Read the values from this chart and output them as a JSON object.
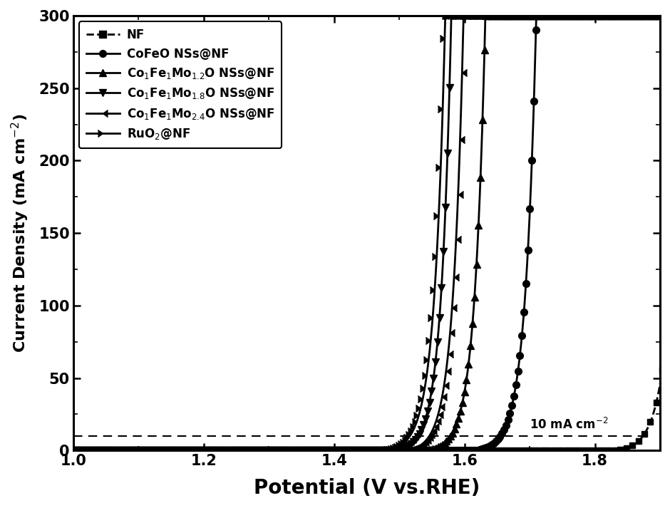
{
  "title": "",
  "xlabel": "Potential (V vs.RHE)",
  "ylabel": "Current Density (mA cm$^{-2}$)",
  "xlim": [
    1.0,
    1.9
  ],
  "ylim": [
    0,
    300
  ],
  "xticks": [
    1.0,
    1.2,
    1.4,
    1.6,
    1.8
  ],
  "yticks": [
    0,
    50,
    100,
    150,
    200,
    250,
    300
  ],
  "ref_line_y": 10,
  "ref_label": "10 mA cm$^{-2}$",
  "background_color": "#ffffff",
  "line_color": "#000000",
  "linewidth": 2.0,
  "markersize": 7,
  "series": [
    {
      "label": "NF",
      "marker": "s",
      "onset": 1.83,
      "k": 55,
      "is_nf": true
    },
    {
      "label": "CoFeO NSs@NF",
      "marker": "o",
      "onset": 1.615,
      "k": 60,
      "is_nf": false
    },
    {
      "label": "Co$_1$Fe$_1$Mo$_{1.2}$O NSs@NF",
      "marker": "^",
      "onset": 1.54,
      "k": 62,
      "is_nf": false
    },
    {
      "label": "Co$_1$Fe$_1$Mo$_{1.8}$O NSs@NF",
      "marker": "v",
      "onset": 1.492,
      "k": 65,
      "is_nf": false
    },
    {
      "label": "Co$_1$Fe$_1$Mo$_{2.4}$O NSs@NF",
      "marker": 4,
      "onset": 1.508,
      "k": 63,
      "is_nf": false
    },
    {
      "label": "RuO$_2$@NF",
      "marker": 5,
      "onset": 1.477,
      "k": 61,
      "is_nf": false
    }
  ]
}
